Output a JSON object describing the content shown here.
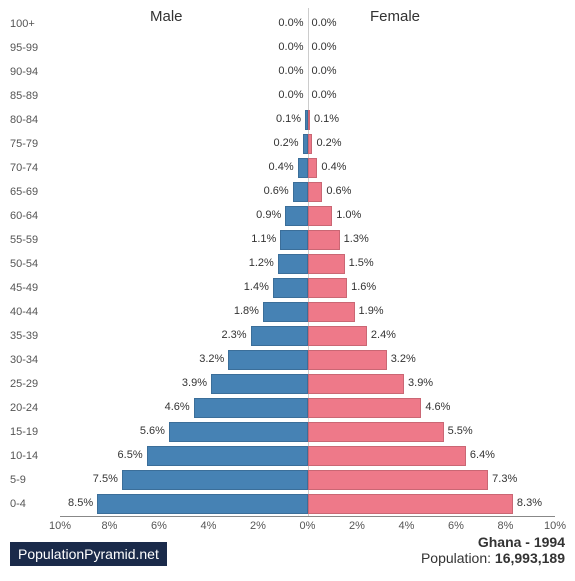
{
  "chart": {
    "type": "population-pyramid",
    "male_label": "Male",
    "female_label": "Female",
    "male_color": "#4682b4",
    "female_color": "#ee7989",
    "background_color": "#ffffff",
    "label_fontsize": 11,
    "header_fontsize": 15,
    "max_pct": 10,
    "axis_ticks": [
      "10%",
      "8%",
      "6%",
      "4%",
      "2%",
      "0%",
      "2%",
      "4%",
      "6%",
      "8%",
      "10%"
    ],
    "age_groups": [
      {
        "label": "100+",
        "male": 0.0,
        "female": 0.0
      },
      {
        "label": "95-99",
        "male": 0.0,
        "female": 0.0
      },
      {
        "label": "90-94",
        "male": 0.0,
        "female": 0.0
      },
      {
        "label": "85-89",
        "male": 0.0,
        "female": 0.0
      },
      {
        "label": "80-84",
        "male": 0.1,
        "female": 0.1
      },
      {
        "label": "75-79",
        "male": 0.2,
        "female": 0.2
      },
      {
        "label": "70-74",
        "male": 0.4,
        "female": 0.4
      },
      {
        "label": "65-69",
        "male": 0.6,
        "female": 0.6
      },
      {
        "label": "60-64",
        "male": 0.9,
        "female": 1.0
      },
      {
        "label": "55-59",
        "male": 1.1,
        "female": 1.3
      },
      {
        "label": "50-54",
        "male": 1.2,
        "female": 1.5
      },
      {
        "label": "45-49",
        "male": 1.4,
        "female": 1.6
      },
      {
        "label": "40-44",
        "male": 1.8,
        "female": 1.9
      },
      {
        "label": "35-39",
        "male": 2.3,
        "female": 2.4
      },
      {
        "label": "30-34",
        "male": 3.2,
        "female": 3.2
      },
      {
        "label": "25-29",
        "male": 3.9,
        "female": 3.9
      },
      {
        "label": "20-24",
        "male": 4.6,
        "female": 4.6
      },
      {
        "label": "15-19",
        "male": 5.6,
        "female": 5.5
      },
      {
        "label": "10-14",
        "male": 6.5,
        "female": 6.4
      },
      {
        "label": "5-9",
        "male": 7.5,
        "female": 7.3
      },
      {
        "label": "0-4",
        "male": 8.5,
        "female": 8.3
      }
    ]
  },
  "footer": {
    "site_label": "PopulationPyramid.net",
    "site_bg_color": "#1a2a4a",
    "title": "Ghana - 1994",
    "pop_label": "Population: ",
    "pop_value": "16,993,189"
  }
}
